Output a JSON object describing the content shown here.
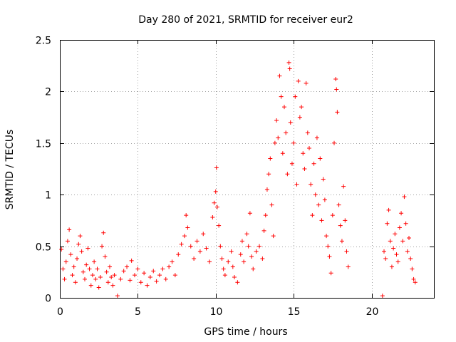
{
  "chart_data": {
    "type": "scatter",
    "title": "Day 280 of 2021, SRMTID for receiver eur2",
    "xlabel": "GPS time / hours",
    "ylabel": "SRMTID / TECUs",
    "xlim": [
      0,
      24
    ],
    "ylim": [
      0,
      2.5
    ],
    "xticks": [
      0,
      5,
      10,
      15,
      20
    ],
    "xtick_labels": [
      "0",
      "5",
      "10",
      "15",
      "20"
    ],
    "yticks": [
      0,
      0.5,
      1,
      1.5,
      2,
      2.5
    ],
    "ytick_labels": [
      "0",
      "0.5",
      "1",
      "1.5",
      "2",
      "2.5"
    ],
    "grid": true,
    "marker": "+",
    "series": [
      {
        "name": "SRMTID",
        "color": "#ff0000",
        "points": [
          [
            0.1,
            0.47
          ],
          [
            0.2,
            0.28
          ],
          [
            0.3,
            0.18
          ],
          [
            0.4,
            0.35
          ],
          [
            0.5,
            0.55
          ],
          [
            0.6,
            0.66
          ],
          [
            0.7,
            0.42
          ],
          [
            0.8,
            0.22
          ],
          [
            0.9,
            0.3
          ],
          [
            1.0,
            0.15
          ],
          [
            1.1,
            0.38
          ],
          [
            1.2,
            0.52
          ],
          [
            1.3,
            0.6
          ],
          [
            1.4,
            0.45
          ],
          [
            1.5,
            0.25
          ],
          [
            1.6,
            0.18
          ],
          [
            1.7,
            0.32
          ],
          [
            1.8,
            0.48
          ],
          [
            1.9,
            0.28
          ],
          [
            2.0,
            0.12
          ],
          [
            2.1,
            0.22
          ],
          [
            2.2,
            0.35
          ],
          [
            2.3,
            0.18
          ],
          [
            2.4,
            0.28
          ],
          [
            2.5,
            0.1
          ],
          [
            2.6,
            0.2
          ],
          [
            2.7,
            0.5
          ],
          [
            2.8,
            0.63
          ],
          [
            2.9,
            0.4
          ],
          [
            3.0,
            0.25
          ],
          [
            3.1,
            0.15
          ],
          [
            3.2,
            0.3
          ],
          [
            3.3,
            0.2
          ],
          [
            3.4,
            0.12
          ],
          [
            3.5,
            0.22
          ],
          [
            3.7,
            0.02
          ],
          [
            3.9,
            0.18
          ],
          [
            4.1,
            0.26
          ],
          [
            4.3,
            0.3
          ],
          [
            4.5,
            0.17
          ],
          [
            4.6,
            0.36
          ],
          [
            4.8,
            0.22
          ],
          [
            5.0,
            0.28
          ],
          [
            5.2,
            0.15
          ],
          [
            5.4,
            0.24
          ],
          [
            5.6,
            0.12
          ],
          [
            5.8,
            0.2
          ],
          [
            6.0,
            0.26
          ],
          [
            6.2,
            0.16
          ],
          [
            6.4,
            0.22
          ],
          [
            6.6,
            0.28
          ],
          [
            6.8,
            0.18
          ],
          [
            7.0,
            0.3
          ],
          [
            7.2,
            0.35
          ],
          [
            7.4,
            0.22
          ],
          [
            7.6,
            0.42
          ],
          [
            7.8,
            0.52
          ],
          [
            8.0,
            0.6
          ],
          [
            8.1,
            0.8
          ],
          [
            8.2,
            0.68
          ],
          [
            8.4,
            0.5
          ],
          [
            8.6,
            0.38
          ],
          [
            8.8,
            0.55
          ],
          [
            9.0,
            0.45
          ],
          [
            9.2,
            0.62
          ],
          [
            9.4,
            0.48
          ],
          [
            9.6,
            0.35
          ],
          [
            9.8,
            0.78
          ],
          [
            9.9,
            0.92
          ],
          [
            10.0,
            1.03
          ],
          [
            10.05,
            1.26
          ],
          [
            10.1,
            0.88
          ],
          [
            10.2,
            0.7
          ],
          [
            10.3,
            0.5
          ],
          [
            10.4,
            0.38
          ],
          [
            10.5,
            0.28
          ],
          [
            10.6,
            0.22
          ],
          [
            10.8,
            0.35
          ],
          [
            11.0,
            0.45
          ],
          [
            11.1,
            0.3
          ],
          [
            11.2,
            0.2
          ],
          [
            11.4,
            0.15
          ],
          [
            11.6,
            0.42
          ],
          [
            11.7,
            0.55
          ],
          [
            11.8,
            0.35
          ],
          [
            12.0,
            0.62
          ],
          [
            12.1,
            0.5
          ],
          [
            12.2,
            0.82
          ],
          [
            12.3,
            0.4
          ],
          [
            12.4,
            0.28
          ],
          [
            12.6,
            0.45
          ],
          [
            12.8,
            0.5
          ],
          [
            13.0,
            0.38
          ],
          [
            13.1,
            0.65
          ],
          [
            13.2,
            0.8
          ],
          [
            13.3,
            1.05
          ],
          [
            13.4,
            1.2
          ],
          [
            13.5,
            1.35
          ],
          [
            13.6,
            0.9
          ],
          [
            13.7,
            0.6
          ],
          [
            13.8,
            1.5
          ],
          [
            13.9,
            1.72
          ],
          [
            14.0,
            1.55
          ],
          [
            14.1,
            2.15
          ],
          [
            14.2,
            1.95
          ],
          [
            14.3,
            1.4
          ],
          [
            14.4,
            1.85
          ],
          [
            14.5,
            1.6
          ],
          [
            14.6,
            1.2
          ],
          [
            14.7,
            2.28
          ],
          [
            14.75,
            2.22
          ],
          [
            14.8,
            1.7
          ],
          [
            14.9,
            1.3
          ],
          [
            15.0,
            1.5
          ],
          [
            15.1,
            1.95
          ],
          [
            15.2,
            1.1
          ],
          [
            15.3,
            2.1
          ],
          [
            15.4,
            1.75
          ],
          [
            15.5,
            1.85
          ],
          [
            15.6,
            1.4
          ],
          [
            15.7,
            1.25
          ],
          [
            15.8,
            2.08
          ],
          [
            15.9,
            1.6
          ],
          [
            16.0,
            1.45
          ],
          [
            16.1,
            1.1
          ],
          [
            16.2,
            0.8
          ],
          [
            16.3,
            1.3
          ],
          [
            16.4,
            1.0
          ],
          [
            16.5,
            1.55
          ],
          [
            16.6,
            0.9
          ],
          [
            16.7,
            1.35
          ],
          [
            16.8,
            0.75
          ],
          [
            16.9,
            1.15
          ],
          [
            17.0,
            0.95
          ],
          [
            17.1,
            0.6
          ],
          [
            17.2,
            0.5
          ],
          [
            17.3,
            0.4
          ],
          [
            17.4,
            0.24
          ],
          [
            17.5,
            0.8
          ],
          [
            17.6,
            1.5
          ],
          [
            17.7,
            2.12
          ],
          [
            17.75,
            2.02
          ],
          [
            17.8,
            1.8
          ],
          [
            17.9,
            0.9
          ],
          [
            18.0,
            0.7
          ],
          [
            18.1,
            0.55
          ],
          [
            18.2,
            1.08
          ],
          [
            18.3,
            0.75
          ],
          [
            18.4,
            0.45
          ],
          [
            18.5,
            0.3
          ],
          [
            20.7,
            0.02
          ],
          [
            20.8,
            0.45
          ],
          [
            20.9,
            0.38
          ],
          [
            21.0,
            0.72
          ],
          [
            21.1,
            0.85
          ],
          [
            21.2,
            0.55
          ],
          [
            21.3,
            0.3
          ],
          [
            21.4,
            0.48
          ],
          [
            21.5,
            0.62
          ],
          [
            21.6,
            0.42
          ],
          [
            21.7,
            0.35
          ],
          [
            21.8,
            0.68
          ],
          [
            21.9,
            0.82
          ],
          [
            22.0,
            0.55
          ],
          [
            22.1,
            0.98
          ],
          [
            22.2,
            0.72
          ],
          [
            22.3,
            0.45
          ],
          [
            22.4,
            0.58
          ],
          [
            22.5,
            0.38
          ],
          [
            22.6,
            0.28
          ],
          [
            22.7,
            0.18
          ],
          [
            22.8,
            0.15
          ]
        ]
      }
    ]
  }
}
